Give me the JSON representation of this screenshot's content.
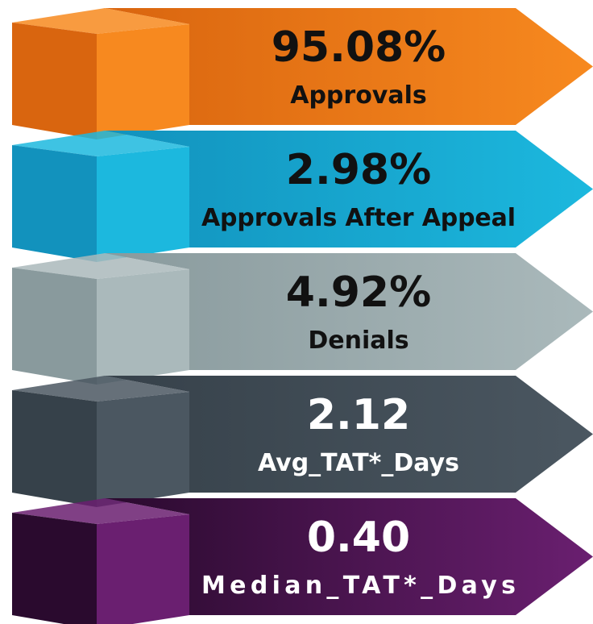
{
  "items": [
    {
      "value": "95.08%",
      "label": "Approvals",
      "color": "#f7891f",
      "shade": "#d9650f",
      "text_color": "#111111"
    },
    {
      "value": "2.98%",
      "label": "Approvals After Appeal",
      "color": "#1cb8de",
      "shade": "#1292bd",
      "text_color": "#111111"
    },
    {
      "value": "4.92%",
      "label": "Denials",
      "color": "#aab9bb",
      "shade": "#899a9d",
      "text_color": "#111111"
    },
    {
      "value": "2.12",
      "label": "Avg_TAT*_Days",
      "color": "#4b5761",
      "shade": "#36414a",
      "text_color": "#ffffff"
    },
    {
      "value": "0.40",
      "label": "Median_TAT*_Days",
      "color": "#6a1f70",
      "shade": "#2a0a2e",
      "text_color": "#ffffff"
    }
  ]
}
